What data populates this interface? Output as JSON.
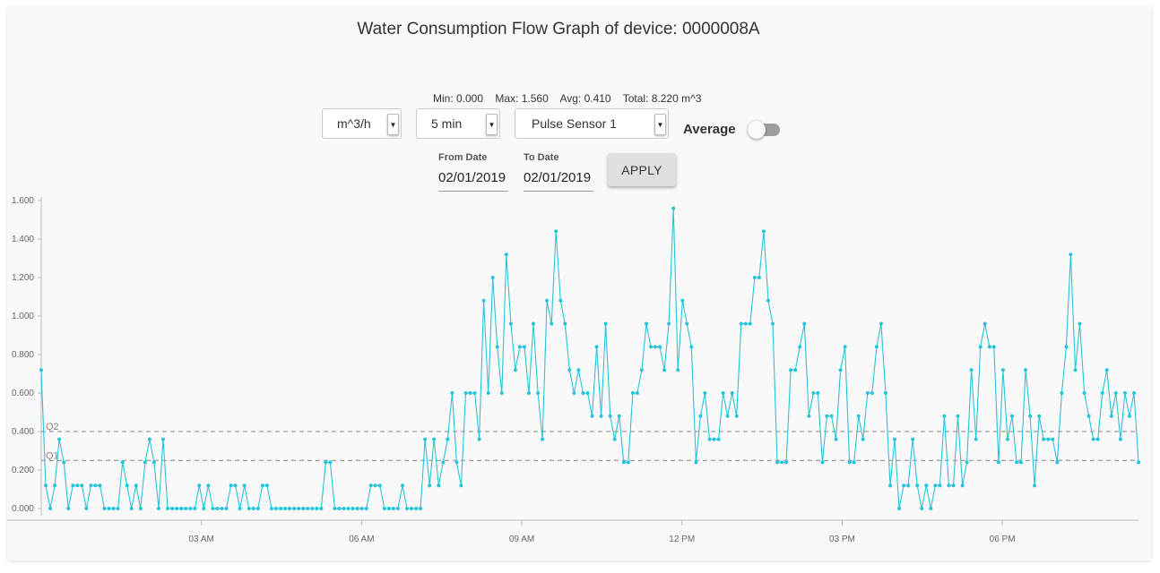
{
  "title": "Water Consumption Flow Graph of device: 0000008A",
  "stats": {
    "min": "Min: 0.000",
    "max": "Max: 1.560",
    "avg": "Avg: 0.410",
    "total": "Total: 8.220 m^3"
  },
  "controls": {
    "unit": "m^3/h",
    "interval": "5 min",
    "sensor": "Pulse Sensor 1",
    "average_label": "Average",
    "average_on": false,
    "from_label": "From Date",
    "from_value": "02/01/2019",
    "to_label": "To Date",
    "to_value": "02/01/2019",
    "apply_label": "APPLY"
  },
  "colors": {
    "series": "#26c6da",
    "quartile_line": "#888888"
  },
  "icons": {
    "dropdown": "caret-down-icon"
  },
  "chart_data": {
    "type": "line",
    "title": "Water Consumption Flow Graph of device: 0000008A",
    "xlabel": "",
    "ylabel": "",
    "x_unit": "hours since 00:00 on 02/01/2019",
    "x_range": [
      0,
      20.55
    ],
    "ylim": [
      0,
      1.6
    ],
    "yticks": [
      0,
      0.2,
      0.4,
      0.6,
      0.8,
      1.0,
      1.2,
      1.4,
      1.6
    ],
    "ytick_labels": [
      "0.000",
      "0.200",
      "0.400",
      "0.600",
      "0.800",
      "1.000",
      "1.200",
      "1.400",
      "1.600"
    ],
    "xticks": [
      3,
      6,
      9,
      12,
      15,
      18
    ],
    "xtick_labels": [
      "03 AM",
      "06 AM",
      "09 AM",
      "12 PM",
      "03 PM",
      "06 PM"
    ],
    "grid": false,
    "reference_lines": [
      {
        "name": "Q2",
        "value": 0.4
      },
      {
        "name": "Q1",
        "value": 0.25
      }
    ],
    "series": [
      {
        "values": [
          0.72,
          0.12,
          0.0,
          0.12,
          0.36,
          0.24,
          0.0,
          0.12,
          0.12,
          0.12,
          0.0,
          0.12,
          0.12,
          0.12,
          0.0,
          0.0,
          0.0,
          0.0,
          0.24,
          0.12,
          0.0,
          0.12,
          0.0,
          0.24,
          0.36,
          0.24,
          0.0,
          0.36,
          0.0,
          0.0,
          0.0,
          0.0,
          0.0,
          0.0,
          0.0,
          0.12,
          0.0,
          0.12,
          0.0,
          0.0,
          0.0,
          0.0,
          0.12,
          0.12,
          0.0,
          0.12,
          0.0,
          0.0,
          0.0,
          0.12,
          0.12,
          0.0,
          0.0,
          0.0,
          0.0,
          0.0,
          0.0,
          0.0,
          0.0,
          0.0,
          0.0,
          0.0,
          0.0,
          0.24,
          0.24,
          0.0,
          0.0,
          0.0,
          0.0,
          0.0,
          0.0,
          0.0,
          0.0,
          0.12,
          0.12,
          0.12,
          0.0,
          0.0,
          0.0,
          0.0,
          0.12,
          0.0,
          0.0,
          0.0,
          0.0,
          0.36,
          0.12,
          0.36,
          0.12,
          0.24,
          0.36,
          0.6,
          0.24,
          0.12,
          0.6,
          0.6,
          0.6,
          0.36,
          1.08,
          0.6,
          1.2,
          0.84,
          0.6,
          1.32,
          0.96,
          0.72,
          0.84,
          0.84,
          0.6,
          0.96,
          0.6,
          0.36,
          1.08,
          0.96,
          1.44,
          1.08,
          0.96,
          0.72,
          0.6,
          0.72,
          0.6,
          0.6,
          0.48,
          0.84,
          0.48,
          0.96,
          0.48,
          0.36,
          0.48,
          0.24,
          0.24,
          0.6,
          0.6,
          0.72,
          0.96,
          0.84,
          0.84,
          0.84,
          0.72,
          0.96,
          1.56,
          0.72,
          1.08,
          0.96,
          0.84,
          0.24,
          0.48,
          0.6,
          0.36,
          0.36,
          0.36,
          0.6,
          0.48,
          0.6,
          0.48,
          0.96,
          0.96,
          0.96,
          1.2,
          1.2,
          1.44,
          1.08,
          0.96,
          0.24,
          0.24,
          0.24,
          0.72,
          0.72,
          0.84,
          0.96,
          0.48,
          0.6,
          0.6,
          0.24,
          0.48,
          0.48,
          0.36,
          0.72,
          0.84,
          0.24,
          0.24,
          0.48,
          0.36,
          0.6,
          0.6,
          0.84,
          0.96,
          0.6,
          0.12,
          0.36,
          0.0,
          0.12,
          0.12,
          0.36,
          0.12,
          0.0,
          0.12,
          0.0,
          0.12,
          0.12,
          0.48,
          0.12,
          0.12,
          0.48,
          0.12,
          0.24,
          0.72,
          0.36,
          0.84,
          0.96,
          0.84,
          0.84,
          0.24,
          0.72,
          0.36,
          0.48,
          0.24,
          0.24,
          0.72,
          0.48,
          0.12,
          0.48,
          0.36,
          0.36,
          0.36,
          0.24,
          0.6,
          0.84,
          1.32,
          0.72,
          0.96,
          0.6,
          0.48,
          0.36,
          0.36,
          0.6,
          0.72,
          0.48,
          0.6,
          0.36,
          0.6,
          0.48,
          0.6,
          0.24
        ]
      }
    ]
  }
}
